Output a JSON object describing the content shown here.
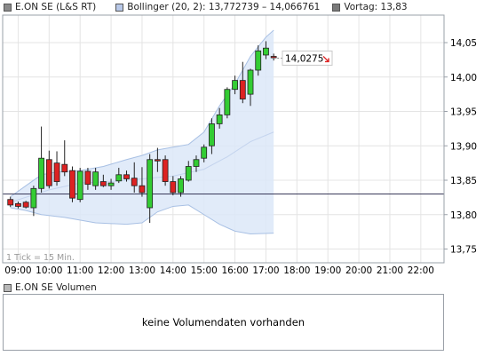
{
  "legend": {
    "series": {
      "label": "E.ON SE (L&S RT)",
      "color": "#8a8a8a"
    },
    "bollinger": {
      "label": "Bollinger (20, 2): 13,772739 – 14,066761",
      "color": "#b8c8e8"
    },
    "vortag": {
      "label": "Vortag: 13,83",
      "color": "#7a7a7a"
    }
  },
  "chart_data": {
    "type": "candlestick",
    "title": "",
    "interval_label": "1 Tick = 15 Min.",
    "x_tick_labels": [
      "09:00",
      "10:00",
      "11:00",
      "12:00",
      "13:00",
      "14:00",
      "15:00",
      "16:00",
      "17:00",
      "18:00",
      "19:00",
      "20:00",
      "21:00",
      "22:00"
    ],
    "y_ticks": [
      13.75,
      13.8,
      13.85,
      13.9,
      13.95,
      14.0,
      14.05
    ],
    "y_tick_labels": [
      "13,75",
      "13,80",
      "13,85",
      "13,90",
      "13,95",
      "14,00",
      "14,05"
    ],
    "ylim": [
      13.73,
      14.09
    ],
    "x_range": [
      "08:30",
      "22:45"
    ],
    "previous_close": 13.83,
    "last_price": 14.0275,
    "last_price_label": "14,0275",
    "up_color": "#33cc33",
    "down_color": "#dd2222",
    "band_color": "#dce8f8",
    "candles": [
      {
        "t": "08:45",
        "o": 13.822,
        "h": 13.826,
        "l": 13.811,
        "c": 13.814
      },
      {
        "t": "09:00",
        "o": 13.816,
        "h": 13.819,
        "l": 13.809,
        "c": 13.812
      },
      {
        "t": "09:15",
        "o": 13.818,
        "h": 13.82,
        "l": 13.809,
        "c": 13.811
      },
      {
        "t": "09:30",
        "o": 13.81,
        "h": 13.842,
        "l": 13.798,
        "c": 13.838
      },
      {
        "t": "09:45",
        "o": 13.838,
        "h": 13.928,
        "l": 13.832,
        "c": 13.882
      },
      {
        "t": "10:00",
        "o": 13.88,
        "h": 13.893,
        "l": 13.838,
        "c": 13.842
      },
      {
        "t": "10:15",
        "o": 13.875,
        "h": 13.892,
        "l": 13.842,
        "c": 13.848
      },
      {
        "t": "10:30",
        "o": 13.873,
        "h": 13.908,
        "l": 13.856,
        "c": 13.862
      },
      {
        "t": "10:45",
        "o": 13.864,
        "h": 13.87,
        "l": 13.818,
        "c": 13.824
      },
      {
        "t": "11:00",
        "o": 13.822,
        "h": 13.868,
        "l": 13.818,
        "c": 13.863
      },
      {
        "t": "11:15",
        "o": 13.863,
        "h": 13.868,
        "l": 13.836,
        "c": 13.844
      },
      {
        "t": "11:30",
        "o": 13.842,
        "h": 13.868,
        "l": 13.836,
        "c": 13.862
      },
      {
        "t": "11:45",
        "o": 13.848,
        "h": 13.858,
        "l": 13.84,
        "c": 13.842
      },
      {
        "t": "12:00",
        "o": 13.842,
        "h": 13.852,
        "l": 13.836,
        "c": 13.846
      },
      {
        "t": "12:15",
        "o": 13.849,
        "h": 13.868,
        "l": 13.846,
        "c": 13.858
      },
      {
        "t": "12:30",
        "o": 13.858,
        "h": 13.864,
        "l": 13.848,
        "c": 13.852
      },
      {
        "t": "12:45",
        "o": 13.853,
        "h": 13.876,
        "l": 13.832,
        "c": 13.842
      },
      {
        "t": "13:00",
        "o": 13.842,
        "h": 13.869,
        "l": 13.826,
        "c": 13.832
      },
      {
        "t": "13:15",
        "o": 13.81,
        "h": 13.888,
        "l": 13.788,
        "c": 13.88
      },
      {
        "t": "13:30",
        "o": 13.88,
        "h": 13.897,
        "l": 13.862,
        "c": 13.878
      },
      {
        "t": "13:45",
        "o": 13.88,
        "h": 13.886,
        "l": 13.842,
        "c": 13.848
      },
      {
        "t": "14:00",
        "o": 13.848,
        "h": 13.856,
        "l": 13.828,
        "c": 13.832
      },
      {
        "t": "14:15",
        "o": 13.832,
        "h": 13.856,
        "l": 13.826,
        "c": 13.852
      },
      {
        "t": "14:30",
        "o": 13.85,
        "h": 13.878,
        "l": 13.848,
        "c": 13.87
      },
      {
        "t": "14:45",
        "o": 13.87,
        "h": 13.886,
        "l": 13.862,
        "c": 13.88
      },
      {
        "t": "15:00",
        "o": 13.882,
        "h": 13.902,
        "l": 13.876,
        "c": 13.898
      },
      {
        "t": "15:15",
        "o": 13.9,
        "h": 13.94,
        "l": 13.888,
        "c": 13.932
      },
      {
        "t": "15:30",
        "o": 13.932,
        "h": 13.955,
        "l": 13.925,
        "c": 13.945
      },
      {
        "t": "15:45",
        "o": 13.945,
        "h": 13.985,
        "l": 13.94,
        "c": 13.982
      },
      {
        "t": "16:00",
        "o": 13.982,
        "h": 14.002,
        "l": 13.975,
        "c": 13.995
      },
      {
        "t": "16:15",
        "o": 13.995,
        "h": 14.022,
        "l": 13.962,
        "c": 13.968
      },
      {
        "t": "16:30",
        "o": 13.975,
        "h": 14.012,
        "l": 13.958,
        "c": 14.01
      },
      {
        "t": "16:45",
        "o": 14.01,
        "h": 14.046,
        "l": 14.002,
        "c": 14.038
      },
      {
        "t": "17:00",
        "o": 14.032,
        "h": 14.052,
        "l": 14.026,
        "c": 14.042
      },
      {
        "t": "17:15",
        "o": 14.03,
        "h": 14.034,
        "l": 14.024,
        "c": 14.028
      }
    ],
    "bollinger_upper": [
      [
        "08:45",
        13.826
      ],
      [
        "09:15",
        13.842
      ],
      [
        "09:45",
        13.858
      ],
      [
        "10:15",
        13.862
      ],
      [
        "11:00",
        13.864
      ],
      [
        "11:45",
        13.87
      ],
      [
        "12:30",
        13.88
      ],
      [
        "13:00",
        13.886
      ],
      [
        "13:30",
        13.894
      ],
      [
        "14:00",
        13.898
      ],
      [
        "14:30",
        13.902
      ],
      [
        "15:00",
        13.92
      ],
      [
        "15:30",
        13.958
      ],
      [
        "16:00",
        13.99
      ],
      [
        "16:30",
        14.03
      ],
      [
        "17:00",
        14.058
      ],
      [
        "17:15",
        14.068
      ]
    ],
    "bollinger_middle": [
      [
        "08:45",
        13.818
      ],
      [
        "10:00",
        13.836
      ],
      [
        "11:00",
        13.846
      ],
      [
        "12:00",
        13.848
      ],
      [
        "13:00",
        13.852
      ],
      [
        "14:00",
        13.856
      ],
      [
        "15:00",
        13.866
      ],
      [
        "15:45",
        13.884
      ],
      [
        "16:30",
        13.906
      ],
      [
        "17:15",
        13.92
      ]
    ],
    "bollinger_lower": [
      [
        "08:45",
        13.81
      ],
      [
        "09:15",
        13.806
      ],
      [
        "09:45",
        13.8
      ],
      [
        "10:30",
        13.796
      ],
      [
        "11:30",
        13.788
      ],
      [
        "12:30",
        13.786
      ],
      [
        "13:00",
        13.788
      ],
      [
        "13:30",
        13.804
      ],
      [
        "14:00",
        13.812
      ],
      [
        "14:30",
        13.814
      ],
      [
        "15:00",
        13.8
      ],
      [
        "15:30",
        13.786
      ],
      [
        "16:00",
        13.776
      ],
      [
        "16:30",
        13.772
      ],
      [
        "17:15",
        13.773
      ]
    ]
  },
  "volume_panel": {
    "legend_label": "E.ON SE Volumen",
    "message": "keine Volumendaten vorhanden",
    "swatch_color": "#b8b8b8"
  }
}
